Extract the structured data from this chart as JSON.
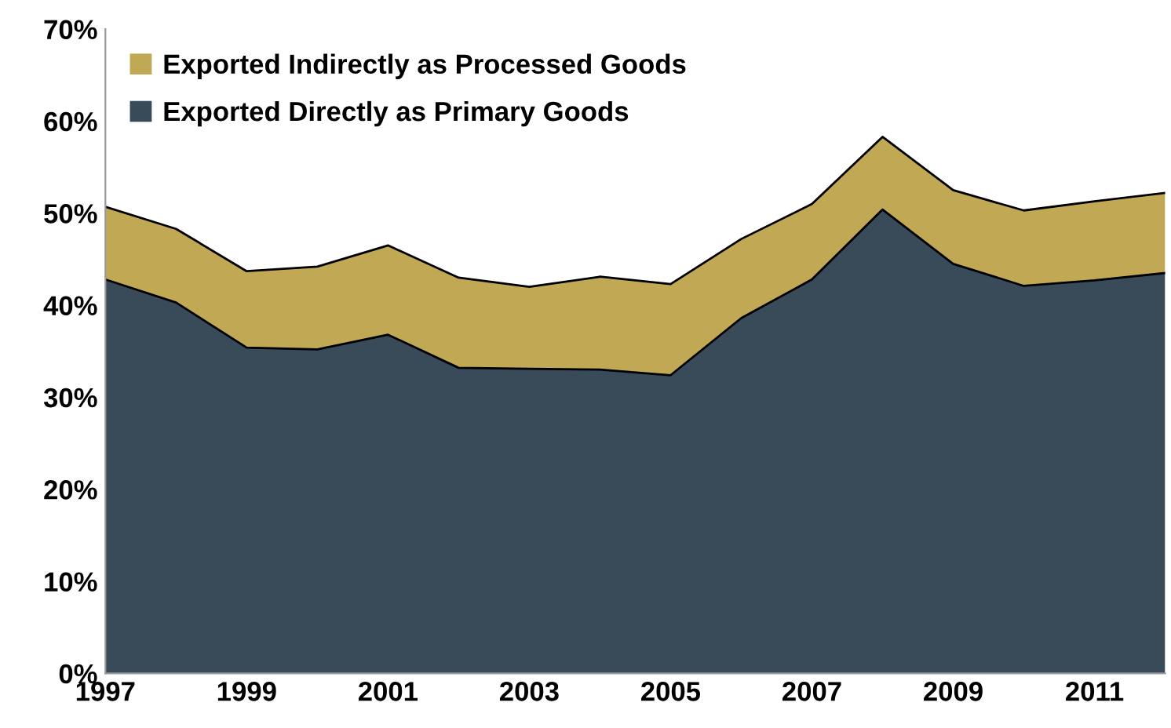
{
  "chart_data": {
    "type": "area",
    "stacked": true,
    "x": [
      1997,
      1998,
      1999,
      2000,
      2001,
      2002,
      2003,
      2004,
      2005,
      2006,
      2007,
      2008,
      2009,
      2010,
      2011,
      2012
    ],
    "series": [
      {
        "name": "Exported Directly as Primary Goods",
        "color": "#394a58",
        "values": [
          42.8,
          40.3,
          35.4,
          35.2,
          36.8,
          33.2,
          33.1,
          33.0,
          32.4,
          38.6,
          42.8,
          50.4,
          44.5,
          42.1,
          42.7,
          43.5
        ]
      },
      {
        "name": "Exported Indirectly as Processed Goods",
        "color": "#c0a854",
        "values": [
          7.9,
          8.0,
          8.3,
          9.0,
          9.7,
          9.8,
          8.9,
          10.1,
          9.9,
          8.6,
          8.2,
          7.9,
          8.0,
          8.2,
          8.6,
          8.7
        ]
      }
    ],
    "xlim": [
      1997,
      2012
    ],
    "xticks": [
      1997,
      1999,
      2001,
      2003,
      2005,
      2007,
      2009,
      2011
    ],
    "ylim": [
      0,
      70
    ],
    "yticks": [
      {
        "value": 0,
        "label": "0%"
      },
      {
        "value": 10,
        "label": "10%"
      },
      {
        "value": 20,
        "label": "20%"
      },
      {
        "value": 30,
        "label": "30%"
      },
      {
        "value": 40,
        "label": "40%"
      },
      {
        "value": 50,
        "label": "50%"
      },
      {
        "value": 60,
        "label": "60%"
      },
      {
        "value": 70,
        "label": "70%"
      }
    ],
    "grid": false,
    "legend": "top left"
  }
}
